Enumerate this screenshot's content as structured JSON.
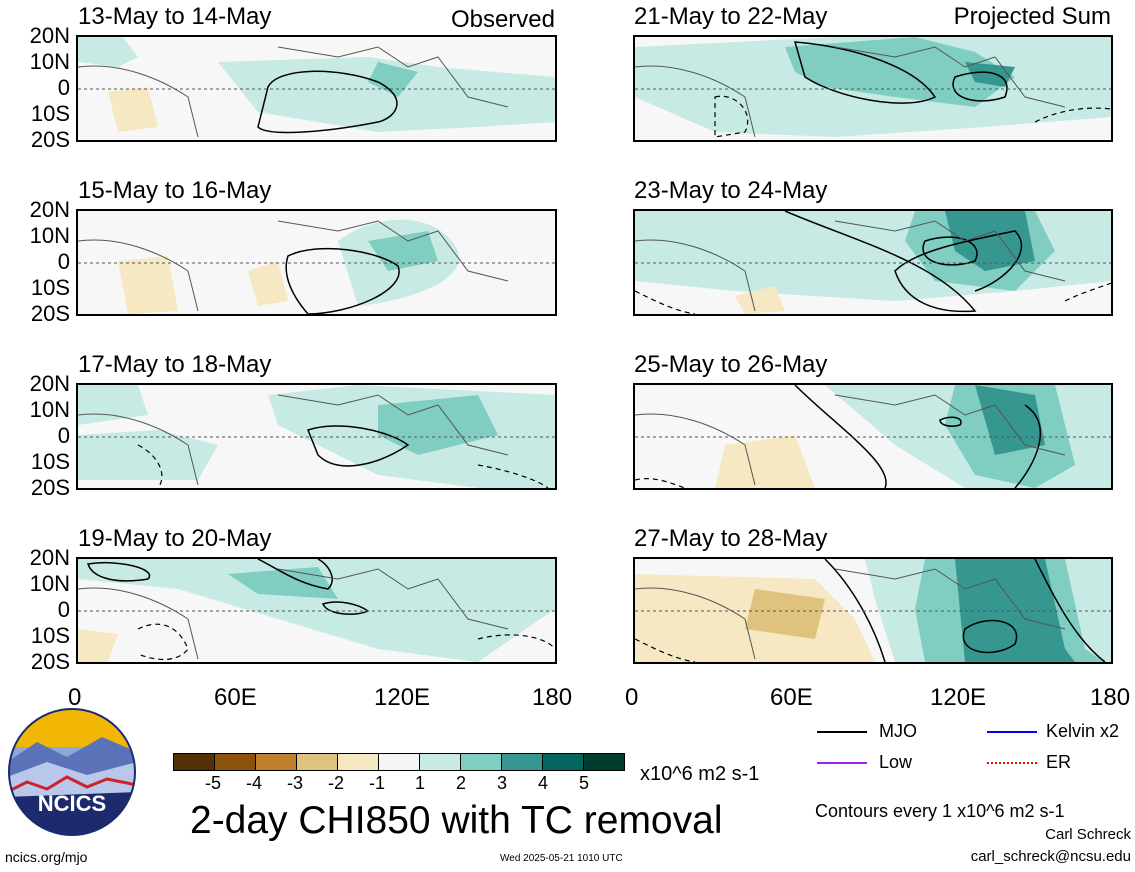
{
  "panels": [
    {
      "title": "13-May to 14-May",
      "tag": "Observed"
    },
    {
      "title": "21-May to 22-May",
      "tag": "Projected Sum"
    },
    {
      "title": "15-May to 16-May",
      "tag": ""
    },
    {
      "title": "23-May to 24-May",
      "tag": ""
    },
    {
      "title": "17-May to 18-May",
      "tag": ""
    },
    {
      "title": "25-May to 26-May",
      "tag": ""
    },
    {
      "title": "19-May to 20-May",
      "tag": ""
    },
    {
      "title": "27-May to 28-May",
      "tag": ""
    }
  ],
  "y_ticks": [
    "20N",
    "10N",
    "0",
    "10S",
    "20S"
  ],
  "x_ticks": [
    "0",
    "60E",
    "120E",
    "180"
  ],
  "colorbar": {
    "labels": [
      "-5",
      "-4",
      "-3",
      "-2",
      "-1",
      "1",
      "2",
      "3",
      "4",
      "5"
    ],
    "colors": [
      "#543005",
      "#8c510a",
      "#bf812d",
      "#dfc27d",
      "#f6e8c3",
      "#f5f5f5",
      "#c7eae5",
      "#80cdc1",
      "#35978f",
      "#01665e",
      "#003c30"
    ],
    "units": "x10^6 m2 s-1"
  },
  "legend": {
    "mjo": "MJO",
    "kelvin": "Kelvin x2",
    "low": "Low",
    "er": "ER",
    "colors": {
      "mjo": "#000000",
      "kelvin": "#0000ff",
      "low": "#a020f0",
      "er": "#ff0000"
    }
  },
  "main_title": "2-day CHI850 with TC removal",
  "contour_note": "Contours every 1 x10^6 m2 s-1",
  "author": "Carl Schreck",
  "email": "carl_schreck@ncsu.edu",
  "footer_left": "ncics.org/mjo",
  "footer_center": "Wed 2025-05-21 1010 UTC",
  "logo_text": "NCICS"
}
